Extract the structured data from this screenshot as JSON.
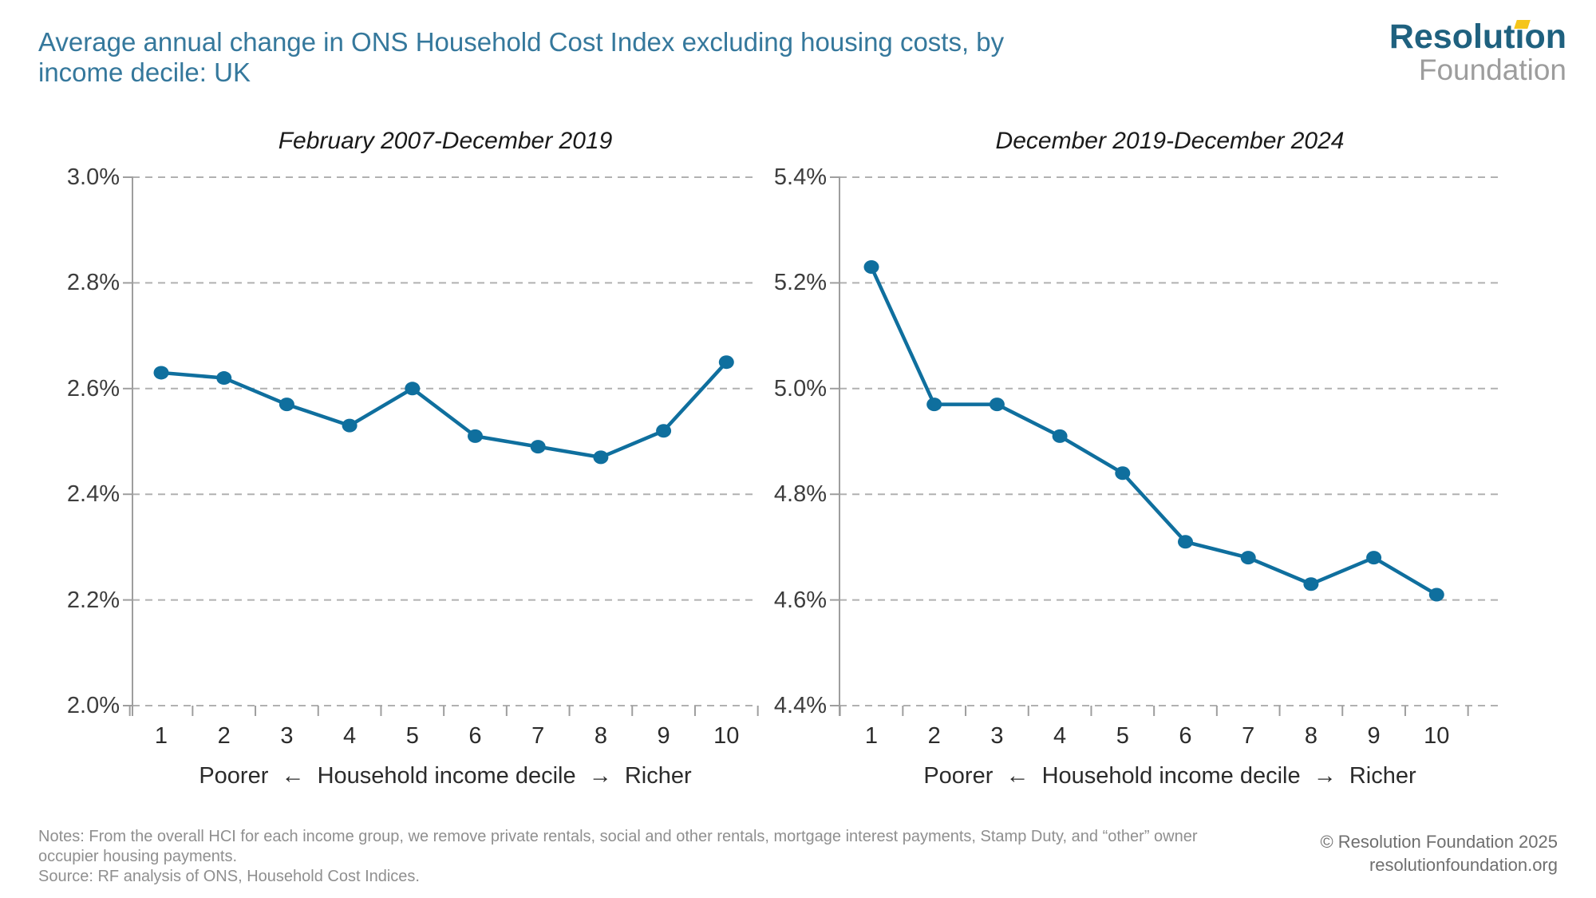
{
  "header": {
    "title_line1": "Average annual change in ONS Household Cost Index excluding housing costs, by",
    "title_line2": "income decile: UK"
  },
  "logo": {
    "line1": "Resolution",
    "line2": "Foundation",
    "accent_color": "#f5c51b",
    "brand_color": "#1f617f"
  },
  "chart_data": [
    {
      "type": "line",
      "title": "February 2007-December 2019",
      "categories": [
        "1",
        "2",
        "3",
        "4",
        "5",
        "6",
        "7",
        "8",
        "9",
        "10"
      ],
      "values": [
        2.63,
        2.62,
        2.57,
        2.53,
        2.6,
        2.51,
        2.49,
        2.47,
        2.52,
        2.65
      ],
      "ylim": [
        2.0,
        3.0
      ],
      "yticks": [
        "3.0%",
        "2.8%",
        "2.6%",
        "2.4%",
        "2.2%",
        "2.0%"
      ],
      "xlabel": "Poorer  ←  Household income decile  →  Richer",
      "ylabel": "",
      "grid": "horizontal-dashed",
      "legend": "none",
      "series_color": "#0f6f9e"
    },
    {
      "type": "line",
      "title": "December 2019-December 2024",
      "categories": [
        "1",
        "2",
        "3",
        "4",
        "5",
        "6",
        "7",
        "8",
        "9",
        "10"
      ],
      "values": [
        5.23,
        4.97,
        4.97,
        4.91,
        4.84,
        4.71,
        4.68,
        4.63,
        4.68,
        4.61
      ],
      "ylim": [
        4.4,
        5.4
      ],
      "yticks": [
        "5.4%",
        "5.2%",
        "5.0%",
        "4.8%",
        "4.6%",
        "4.4%"
      ],
      "xlabel": "Poorer  ←  Household income decile  →  Richer",
      "ylabel": "",
      "grid": "horizontal-dashed",
      "legend": "none",
      "series_color": "#0f6f9e"
    }
  ],
  "footer": {
    "notes_line1": "Notes: From the overall HCI for each income group, we remove private rentals, social and other rentals, mortgage interest payments, Stamp Duty, and “other” owner",
    "notes_line2": "occupier housing payments.",
    "source": "Source: RF analysis of ONS, Household Cost Indices.",
    "copyright": "© Resolution Foundation 2025",
    "website": "resolutionfoundation.org"
  }
}
